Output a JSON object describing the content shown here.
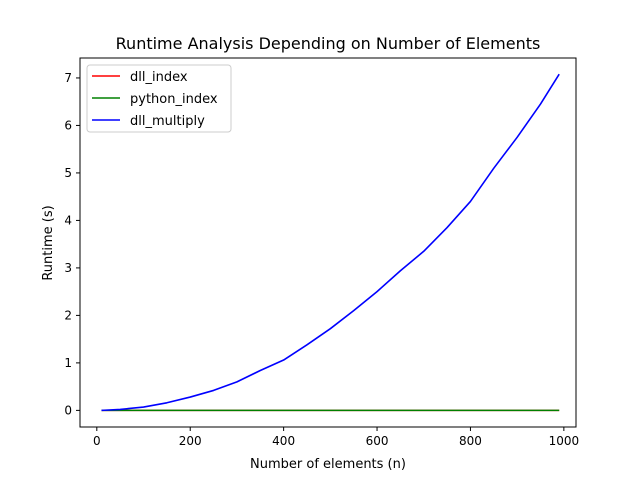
{
  "chart_data": {
    "type": "line",
    "title": "Runtime Analysis Depending on Number of Elements",
    "xlabel": "Number of elements (n)",
    "ylabel": "Runtime (s)",
    "xlim": [
      -36,
      1026
    ],
    "ylim": [
      -0.35,
      7.42
    ],
    "xticks": [
      0,
      200,
      400,
      600,
      800,
      1000
    ],
    "xtick_labels": [
      "0",
      "200",
      "400",
      "600",
      "800",
      "1000"
    ],
    "yticks": [
      0,
      1,
      2,
      3,
      4,
      5,
      6,
      7
    ],
    "ytick_labels": [
      "0",
      "1",
      "2",
      "3",
      "4",
      "5",
      "6",
      "7"
    ],
    "grid": false,
    "legend_position": "top-left",
    "x": [
      10,
      50,
      100,
      150,
      200,
      250,
      300,
      350,
      400,
      450,
      500,
      550,
      600,
      650,
      700,
      750,
      800,
      850,
      900,
      950,
      990
    ],
    "series": [
      {
        "name": "dll_index",
        "color": "#ff0000",
        "values": [
          0,
          0,
          0,
          0,
          0,
          0,
          0,
          0,
          0,
          0,
          0,
          0,
          0,
          0,
          0,
          0,
          0,
          0,
          0,
          0,
          0
        ]
      },
      {
        "name": "python_index",
        "color": "#008000",
        "values": [
          0,
          0,
          0,
          0,
          0,
          0,
          0,
          0,
          0,
          0,
          0,
          0,
          0,
          0,
          0,
          0,
          0,
          0,
          0,
          0,
          0
        ]
      },
      {
        "name": "dll_multiply",
        "color": "#0000ff",
        "values": [
          0.0,
          0.02,
          0.07,
          0.16,
          0.28,
          0.42,
          0.6,
          0.84,
          1.06,
          1.38,
          1.72,
          2.1,
          2.5,
          2.94,
          3.35,
          3.85,
          4.4,
          5.1,
          5.75,
          6.45,
          7.08
        ]
      }
    ]
  }
}
